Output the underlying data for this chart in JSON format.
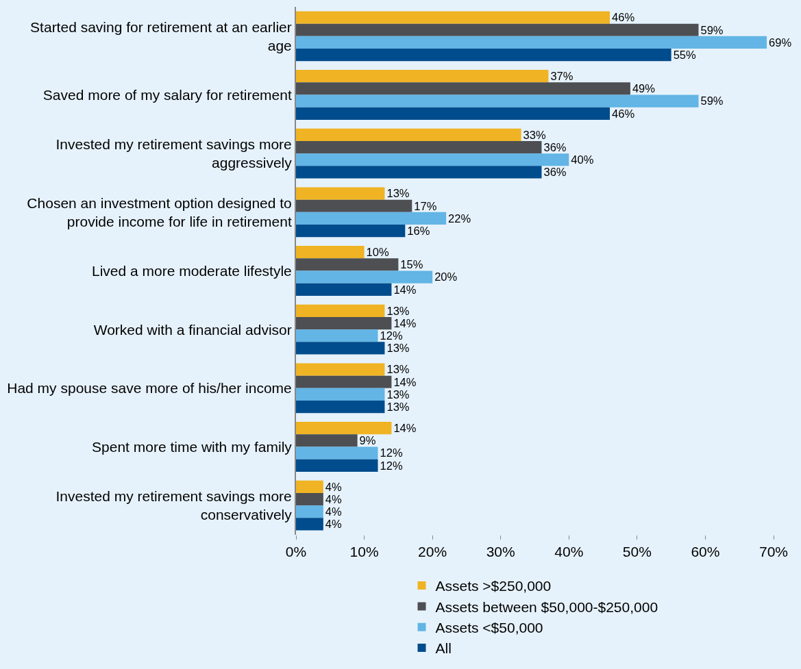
{
  "chart_data": {
    "type": "bar",
    "orientation": "horizontal",
    "categories": [
      "Started saving for retirement at an earlier age",
      "Saved more of my salary for retirement",
      "Invested my retirement savings more aggressively",
      "Chosen an investment option designed to provide income for life in retirement",
      "Lived a more moderate lifestyle",
      "Worked with a financial advisor",
      "Had my spouse save more of his/her income",
      "Spent more time with my family",
      "Invested my retirement savings more conservatively"
    ],
    "series": [
      {
        "name": "Assets >$250,000",
        "color": "#f0b323",
        "values": [
          46,
          37,
          33,
          13,
          10,
          13,
          13,
          14,
          4
        ],
        "value_labels": [
          "46%",
          "37%",
          "33%",
          "13%",
          "10%",
          "13%",
          "13%",
          "14%",
          "4%"
        ]
      },
      {
        "name": "Assets between $50,000-$250,000",
        "color": "#4d4f53",
        "values": [
          59,
          49,
          36,
          17,
          15,
          14,
          14,
          9,
          4
        ],
        "value_labels": [
          "59%",
          "49%",
          "36%",
          "17%",
          "15%",
          "14%",
          "14%",
          "9%",
          "4%"
        ]
      },
      {
        "name": "Assets <$50,000",
        "color": "#62b5e5",
        "values": [
          69,
          59,
          40,
          22,
          20,
          12,
          13,
          12,
          4
        ],
        "value_labels": [
          "69%",
          "59%",
          "40%",
          "22%",
          "20%",
          "12%",
          "13%",
          "12%",
          "4%"
        ]
      },
      {
        "name": "All",
        "color": "#004c8c",
        "values": [
          55,
          46,
          36,
          16,
          14,
          13,
          13,
          12,
          4
        ],
        "value_labels": [
          "55%",
          "46%",
          "36%",
          "16%",
          "14%",
          "13%",
          "13%",
          "12%",
          "4%"
        ]
      }
    ],
    "xlim": [
      0,
      70
    ],
    "xticks": [
      {
        "value": 0,
        "label": "0%"
      },
      {
        "value": 10,
        "label": "10%"
      },
      {
        "value": 20,
        "label": "20%"
      },
      {
        "value": 30,
        "label": "30%"
      },
      {
        "value": 40,
        "label": "40%"
      },
      {
        "value": 50,
        "label": "50%"
      },
      {
        "value": 60,
        "label": "60%"
      },
      {
        "value": 70,
        "label": "70%"
      }
    ],
    "grid": false,
    "legend": "bottom"
  }
}
